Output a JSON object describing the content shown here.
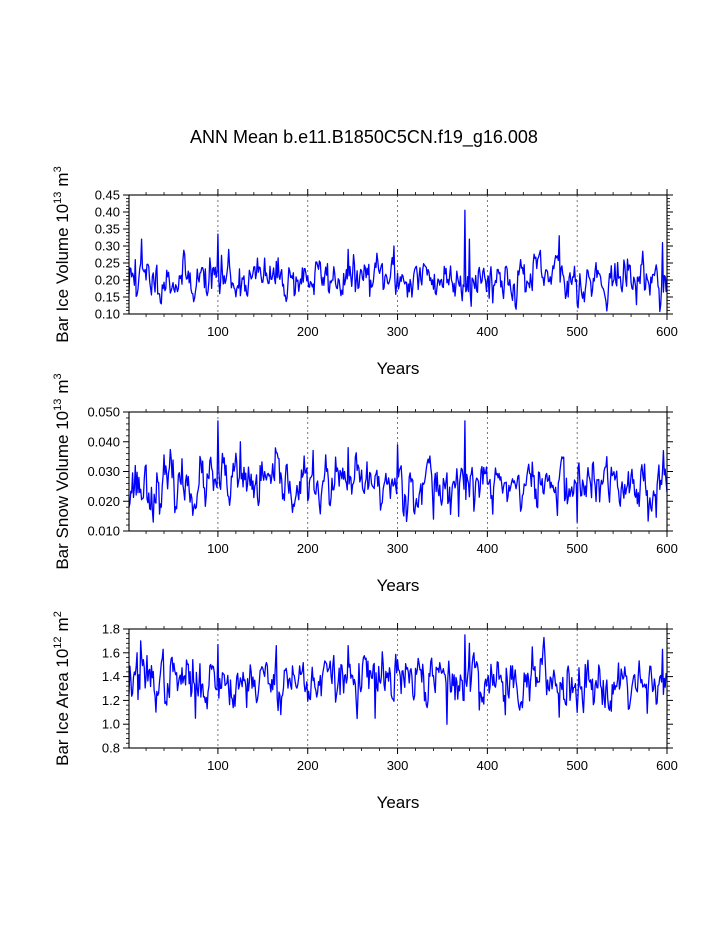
{
  "title": "ANN Mean b.e11.B1850C5CN.f19_g16.008",
  "line_color": "#0000ff",
  "chart_data": [
    {
      "type": "line",
      "ylabel_main": "Bar Ice Volume 10",
      "ylabel_exp": "13",
      "ylabel_unit": "m",
      "ylabel_unit_exp": "3",
      "xlabel": "Years",
      "xlim": [
        1,
        600
      ],
      "ylim": [
        0.1,
        0.45
      ],
      "xticks": [
        100,
        200,
        300,
        400,
        500,
        600
      ],
      "xtick_labels": [
        "100",
        "200",
        "300",
        "400",
        "500",
        "600"
      ],
      "yticks": [
        0.1,
        0.15,
        0.2,
        0.25,
        0.3,
        0.35,
        0.4,
        0.45
      ],
      "ytick_labels": [
        "0.10",
        "0.15",
        "0.20",
        "0.25",
        "0.30",
        "0.35",
        "0.40",
        "0.45"
      ],
      "grid_x": [
        100,
        200,
        300,
        400,
        500
      ],
      "series": [
        {
          "name": "Bar Ice Volume",
          "mean": 0.205,
          "sd": 0.032,
          "seed": 11,
          "anchors": [
            [
              1,
              0.16
            ],
            [
              8,
              0.26
            ],
            [
              15,
              0.32
            ],
            [
              20,
              0.2
            ],
            [
              100,
              0.335
            ],
            [
              102,
              0.16
            ],
            [
              112,
              0.29
            ],
            [
              245,
              0.29
            ],
            [
              296,
              0.3
            ],
            [
              300,
              0.22
            ],
            [
              375,
              0.405
            ],
            [
              378,
              0.21
            ],
            [
              380,
              0.32
            ],
            [
              480,
              0.33
            ],
            [
              490,
              0.15
            ],
            [
              500,
              0.13
            ],
            [
              505,
              0.16
            ],
            [
              595,
              0.31
            ],
            [
              600,
              0.21
            ]
          ]
        }
      ]
    },
    {
      "type": "line",
      "ylabel_main": "Bar Snow Volume 10",
      "ylabel_exp": "13",
      "ylabel_unit": "m",
      "ylabel_unit_exp": "3",
      "xlabel": "Years",
      "xlim": [
        1,
        600
      ],
      "ylim": [
        0.01,
        0.05
      ],
      "xticks": [
        100,
        200,
        300,
        400,
        500,
        600
      ],
      "xtick_labels": [
        "100",
        "200",
        "300",
        "400",
        "500",
        "600"
      ],
      "yticks": [
        0.01,
        0.02,
        0.03,
        0.04,
        0.05
      ],
      "ytick_labels": [
        "0.010",
        "0.020",
        "0.030",
        "0.040",
        "0.050"
      ],
      "grid_x": [
        100,
        200,
        300,
        400,
        500
      ],
      "series": [
        {
          "name": "Bar Snow Volume",
          "mean": 0.0255,
          "sd": 0.0045,
          "seed": 23,
          "anchors": [
            [
              1,
              0.018
            ],
            [
              8,
              0.032
            ],
            [
              12,
              0.028
            ],
            [
              28,
              0.013
            ],
            [
              100,
              0.047
            ],
            [
              103,
              0.024
            ],
            [
              125,
              0.04
            ],
            [
              245,
              0.038
            ],
            [
              300,
              0.039
            ],
            [
              340,
              0.014
            ],
            [
              375,
              0.047
            ],
            [
              379,
              0.026
            ],
            [
              500,
              0.013
            ],
            [
              596,
              0.037
            ],
            [
              600,
              0.023
            ]
          ]
        }
      ]
    },
    {
      "type": "line",
      "ylabel_main": "Bar Ice Area 10",
      "ylabel_exp": "12",
      "ylabel_unit": "m",
      "ylabel_unit_exp": "2",
      "xlabel": "Years",
      "xlim": [
        1,
        600
      ],
      "ylim": [
        0.8,
        1.8
      ],
      "xticks": [
        100,
        200,
        300,
        400,
        500,
        600
      ],
      "xtick_labels": [
        "100",
        "200",
        "300",
        "400",
        "500",
        "600"
      ],
      "yticks": [
        0.8,
        1.0,
        1.2,
        1.4,
        1.6,
        1.8
      ],
      "ytick_labels": [
        "0.8",
        "1.0",
        "1.2",
        "1.4",
        "1.6",
        "1.8"
      ],
      "grid_x": [
        100,
        200,
        300,
        400,
        500
      ],
      "series": [
        {
          "name": "Bar Ice Area",
          "mean": 1.37,
          "sd": 0.11,
          "seed": 37,
          "anchors": [
            [
              1,
              1.25
            ],
            [
              10,
              1.6
            ],
            [
              14,
              1.7
            ],
            [
              20,
              1.4
            ],
            [
              75,
              1.05
            ],
            [
              100,
              1.67
            ],
            [
              103,
              1.3
            ],
            [
              165,
              1.66
            ],
            [
              245,
              1.66
            ],
            [
              275,
              1.05
            ],
            [
              355,
              1.0
            ],
            [
              375,
              1.75
            ],
            [
              378,
              1.4
            ],
            [
              380,
              1.68
            ],
            [
              420,
              1.08
            ],
            [
              450,
              1.65
            ],
            [
              480,
              1.06
            ],
            [
              500,
              1.1
            ],
            [
              595,
              1.63
            ],
            [
              600,
              1.4
            ]
          ]
        }
      ]
    }
  ]
}
